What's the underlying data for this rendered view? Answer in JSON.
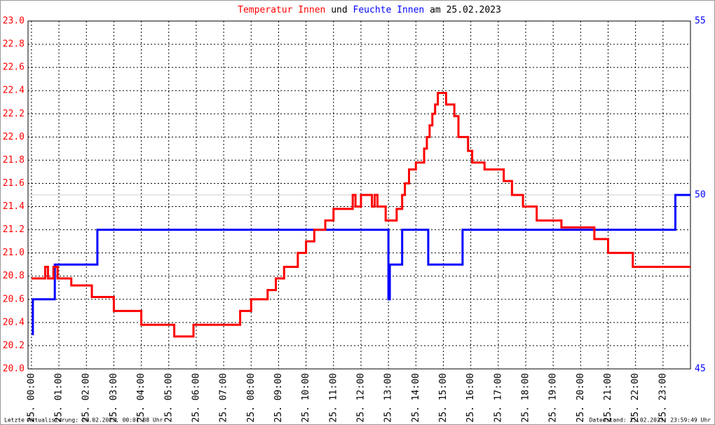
{
  "chart_data": {
    "type": "line",
    "title_connector": "und",
    "title_suffix": "am 25.02.2023",
    "drawstyle": "steps-post",
    "xlim": [
      -0.125,
      24
    ],
    "xticks": [
      {
        "value": 0,
        "label": "25. 00:00"
      },
      {
        "value": 1,
        "label": "25. 01:00"
      },
      {
        "value": 2,
        "label": "25. 02:00"
      },
      {
        "value": 3,
        "label": "25. 03:00"
      },
      {
        "value": 4,
        "label": "25. 04:00"
      },
      {
        "value": 5,
        "label": "25. 05:00"
      },
      {
        "value": 6,
        "label": "25. 06:00"
      },
      {
        "value": 7,
        "label": "25. 07:00"
      },
      {
        "value": 8,
        "label": "25. 08:00"
      },
      {
        "value": 9,
        "label": "25. 09:00"
      },
      {
        "value": 10,
        "label": "25. 10:00"
      },
      {
        "value": 11,
        "label": "25. 11:00"
      },
      {
        "value": 12,
        "label": "25. 12:00"
      },
      {
        "value": 13,
        "label": "25. 13:00"
      },
      {
        "value": 14,
        "label": "25. 14:00"
      },
      {
        "value": 15,
        "label": "25. 15:00"
      },
      {
        "value": 16,
        "label": "25. 16:00"
      },
      {
        "value": 17,
        "label": "25. 17:00"
      },
      {
        "value": 18,
        "label": "25. 18:00"
      },
      {
        "value": 19,
        "label": "25. 19:00"
      },
      {
        "value": 20,
        "label": "25. 20:00"
      },
      {
        "value": 21,
        "label": "25. 21:00"
      },
      {
        "value": 22,
        "label": "25. 22:00"
      },
      {
        "value": 23,
        "label": "25. 23:00"
      }
    ],
    "ylim": [
      20,
      23
    ],
    "yticks": [
      {
        "value": 20,
        "label": "20.0"
      },
      20.2,
      20.4,
      20.6,
      20.8,
      {
        "value": 21,
        "label": "21.0"
      },
      21.2,
      21.4,
      21.6,
      21.8,
      {
        "value": 22,
        "label": "22.0"
      },
      22.2,
      22.4,
      22.6,
      22.8,
      {
        "value": 23,
        "label": "23.0"
      }
    ],
    "y2lim": [
      45,
      55
    ],
    "y2ticks": [
      45,
      50,
      55
    ],
    "grid": true,
    "series": [
      {
        "name": "Temperatur Innen",
        "color": "#ff0000",
        "x": [
          0,
          0.5,
          0.6,
          0.8,
          0.95,
          1.45,
          2.2,
          3.0,
          4.0,
          5.2,
          5.9,
          7.6,
          8.0,
          8.6,
          8.9,
          9.2,
          9.7,
          10.0,
          10.3,
          10.7,
          11.0,
          11.7,
          11.8,
          12.0,
          12.4,
          12.5,
          12.6,
          12.9,
          13.3,
          13.5,
          13.6,
          13.75,
          14.0,
          14.3,
          14.4,
          14.5,
          14.6,
          14.7,
          14.8,
          15.1,
          15.4,
          15.55,
          15.9,
          16.05,
          16.5,
          17.2,
          17.5,
          17.9,
          18.4,
          19.3,
          20.5,
          21.0,
          21.9,
          24
        ],
        "values": [
          20.78,
          20.88,
          20.78,
          20.88,
          20.78,
          20.72,
          20.62,
          20.5,
          20.38,
          20.28,
          20.38,
          20.5,
          20.6,
          20.68,
          20.78,
          20.88,
          21.0,
          21.1,
          21.2,
          21.28,
          21.38,
          21.5,
          21.4,
          21.5,
          21.4,
          21.5,
          21.4,
          21.28,
          21.38,
          21.5,
          21.6,
          21.72,
          21.78,
          21.9,
          22.0,
          22.1,
          22.2,
          22.28,
          22.38,
          22.28,
          22.18,
          22.0,
          21.88,
          21.78,
          21.72,
          21.62,
          21.5,
          21.4,
          21.28,
          21.22,
          21.12,
          21.0,
          20.88,
          20.88
        ]
      },
      {
        "name": "Feuchte Innen",
        "color": "#0000ff",
        "axis": "y2",
        "x": [
          0,
          0.05,
          0.85,
          2.4,
          13.0,
          13.05,
          13.5,
          14.45,
          15.7,
          23.45,
          24
        ],
        "values": [
          46,
          47,
          48,
          49,
          47,
          48,
          49,
          48,
          49,
          50,
          50
        ]
      }
    ],
    "footer_left": "Letzte Aktualisierung: 26.02.2023, 00:01:38 Uhr",
    "footer_right": "Datenstand: 25.02.2023, 23:59:49 Uhr"
  }
}
